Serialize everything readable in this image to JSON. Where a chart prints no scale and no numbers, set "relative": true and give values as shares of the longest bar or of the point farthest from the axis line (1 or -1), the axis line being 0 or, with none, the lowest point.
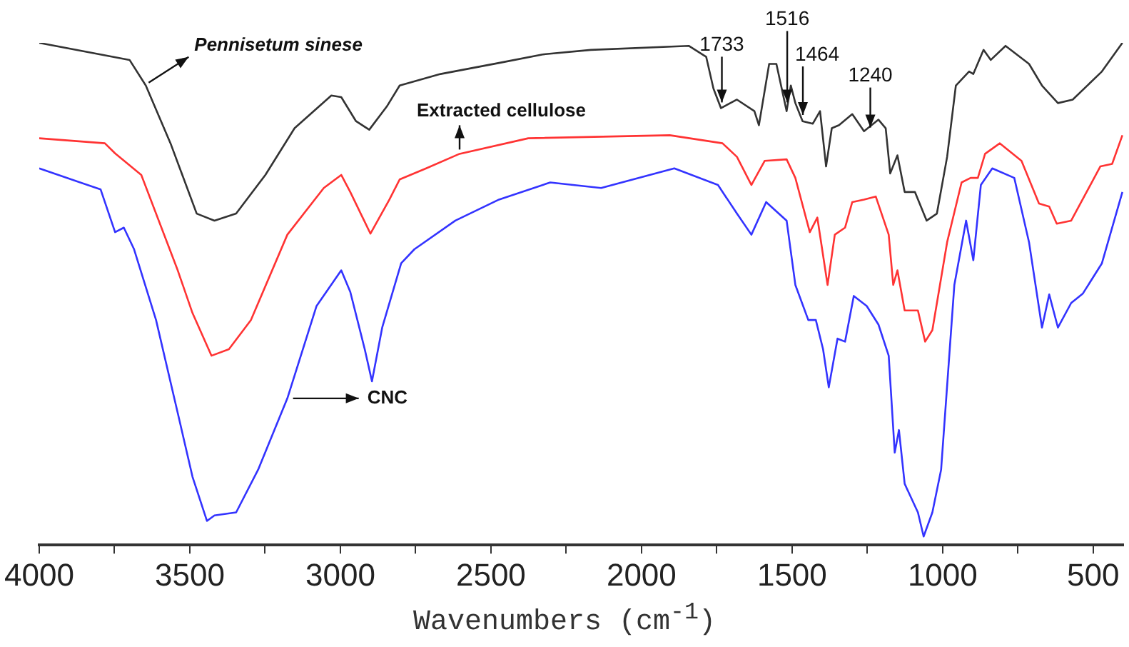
{
  "chart_data": {
    "type": "line",
    "relative": true,
    "xlabel": "Wavenumbers (cm$^{-1}$)",
    "xlim": [
      4000,
      400
    ],
    "xticks": [
      4000,
      {
        "value": 3750,
        "label": null
      },
      3500,
      {
        "value": 3250,
        "label": null
      },
      3000,
      {
        "value": 2750,
        "label": null
      },
      2500,
      {
        "value": 2250,
        "label": null
      },
      2000,
      {
        "value": 1750,
        "label": null
      },
      1500,
      {
        "value": 1250,
        "label": null
      },
      1000,
      {
        "value": 750,
        "label": null
      },
      500
    ],
    "grid": false,
    "legend": false,
    "marker": "none",
    "line_style": "solid",
    "series": [
      {
        "name": "Pennisetum sinese",
        "color": "#333333",
        "x": [
          4000,
          3700,
          3646,
          3564,
          3477,
          3418,
          3346,
          3249,
          3152,
          3030,
          2997,
          2948,
          2904,
          2846,
          2803,
          2667,
          2473,
          2328,
          2168,
          1843,
          1785,
          1761,
          1736,
          1683,
          1625,
          1610,
          1576,
          1552,
          1518,
          1504,
          1489,
          1465,
          1431,
          1407,
          1387,
          1368,
          1344,
          1300,
          1261,
          1213,
          1189,
          1174,
          1150,
          1126,
          1092,
          1053,
          1019,
          985,
          956,
          912,
          898,
          864,
          840,
          791,
          713,
          670,
          617,
          568,
          471,
          403
        ],
        "values": [
          1.0,
          0.966,
          0.915,
          0.8,
          0.66,
          0.646,
          0.66,
          0.737,
          0.83,
          0.895,
          0.892,
          0.844,
          0.827,
          0.873,
          0.915,
          0.938,
          0.96,
          0.977,
          0.986,
          0.994,
          0.972,
          0.909,
          0.87,
          0.887,
          0.864,
          0.836,
          0.958,
          0.958,
          0.864,
          0.915,
          0.88,
          0.844,
          0.839,
          0.864,
          0.754,
          0.83,
          0.836,
          0.858,
          0.824,
          0.847,
          0.83,
          0.74,
          0.776,
          0.703,
          0.703,
          0.646,
          0.66,
          0.773,
          0.915,
          0.943,
          0.938,
          0.986,
          0.966,
          0.994,
          0.958,
          0.915,
          0.88,
          0.887,
          0.943,
          1.0
        ]
      },
      {
        "name": "Extracted cellulose",
        "color": "#ff3333",
        "x": [
          4000,
          3782,
          3748,
          3661,
          3540,
          3491,
          3428,
          3370,
          3297,
          3176,
          3055,
          2997,
          2967,
          2900,
          2837,
          2803,
          2715,
          2604,
          2376,
          1906,
          1731,
          1683,
          1635,
          1591,
          1518,
          1489,
          1441,
          1416,
          1382,
          1358,
          1324,
          1300,
          1261,
          1222,
          1179,
          1164,
          1150,
          1126,
          1082,
          1058,
          1034,
          985,
          937,
          907,
          883,
          859,
          810,
          738,
          680,
          646,
          621,
          573,
          476,
          437,
          403
        ],
        "values": [
          0.81,
          0.8,
          0.78,
          0.737,
          0.547,
          0.462,
          0.377,
          0.39,
          0.448,
          0.618,
          0.711,
          0.737,
          0.703,
          0.62,
          0.688,
          0.728,
          0.75,
          0.779,
          0.81,
          0.816,
          0.8,
          0.773,
          0.717,
          0.765,
          0.768,
          0.731,
          0.623,
          0.652,
          0.518,
          0.618,
          0.632,
          0.683,
          0.688,
          0.694,
          0.618,
          0.518,
          0.547,
          0.467,
          0.467,
          0.405,
          0.428,
          0.603,
          0.722,
          0.731,
          0.731,
          0.779,
          0.8,
          0.765,
          0.68,
          0.674,
          0.64,
          0.646,
          0.754,
          0.759,
          0.816
        ]
      },
      {
        "name": "CNC",
        "color": "#3333ff",
        "x": [
          4000,
          3796,
          3748,
          3719,
          3685,
          3612,
          3540,
          3491,
          3443,
          3418,
          3346,
          3273,
          3176,
          3079,
          2997,
          2967,
          2919,
          2895,
          2861,
          2798,
          2754,
          2618,
          2473,
          2303,
          2134,
          1891,
          1746,
          1683,
          1635,
          1586,
          1518,
          1489,
          1446,
          1421,
          1397,
          1378,
          1349,
          1324,
          1295,
          1252,
          1213,
          1179,
          1159,
          1145,
          1126,
          1082,
          1063,
          1034,
          1005,
          961,
          922,
          898,
          873,
          835,
          762,
          713,
          670,
          646,
          617,
          573,
          534,
          471,
          403
        ],
        "values": [
          0.75,
          0.708,
          0.623,
          0.632,
          0.589,
          0.448,
          0.263,
          0.136,
          0.048,
          0.059,
          0.065,
          0.15,
          0.292,
          0.476,
          0.547,
          0.504,
          0.39,
          0.326,
          0.433,
          0.561,
          0.589,
          0.646,
          0.688,
          0.722,
          0.711,
          0.75,
          0.717,
          0.66,
          0.618,
          0.683,
          0.646,
          0.518,
          0.448,
          0.448,
          0.39,
          0.314,
          0.411,
          0.405,
          0.496,
          0.476,
          0.439,
          0.377,
          0.184,
          0.229,
          0.122,
          0.065,
          0.017,
          0.065,
          0.15,
          0.518,
          0.646,
          0.567,
          0.717,
          0.75,
          0.731,
          0.603,
          0.433,
          0.499,
          0.433,
          0.482,
          0.501,
          0.561,
          0.703
        ]
      }
    ],
    "annotations": [
      {
        "text": "1733",
        "x": 1733,
        "y": 0.87
      },
      {
        "text": "1516",
        "x": 1516,
        "y": 0.87
      },
      {
        "text": "1464",
        "x": 1464,
        "y": 0.845
      },
      {
        "text": "1240",
        "x": 1240,
        "y": 0.82
      }
    ]
  }
}
